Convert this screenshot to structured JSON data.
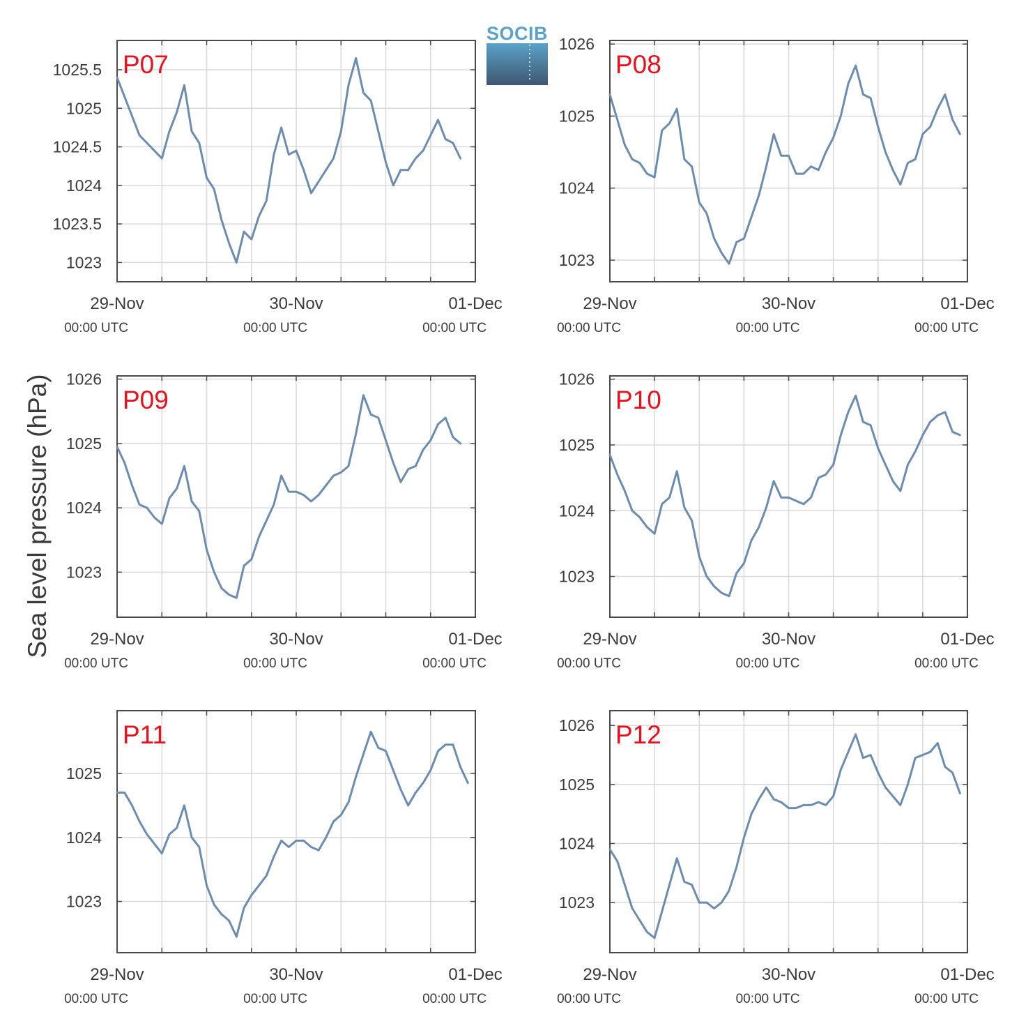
{
  "figure": {
    "ylabel": "Sea level pressure (hPa)",
    "logo_text": "SOCIB"
  },
  "colors": {
    "line": "#6b8cae",
    "label": "#e8101c",
    "grid": "#d9d9d9",
    "axis": "#4a4a4a",
    "logo_top": "#5aa2c8",
    "logo_bottom": "#3f5670"
  },
  "chart_data": [
    {
      "type": "line",
      "title": "P07",
      "xlabel": "",
      "ylabel": "Sea level pressure (hPa)",
      "xlim": [
        "29-Nov 00:00",
        "01-Dec 00:00"
      ],
      "ylim": [
        1022.75,
        1025.88
      ],
      "yticks": [
        1023,
        1023.5,
        1024,
        1024.5,
        1025,
        1025.5
      ],
      "ytick_labels": [
        "1023",
        "1023.5",
        "1024",
        "1024.5",
        "1025",
        "1025.5"
      ],
      "xticks": [
        {
          "label": "29-Nov",
          "sub": "00:00 UTC"
        },
        {
          "label": "30-Nov",
          "sub": "00:00 UTC"
        },
        {
          "label": "01-Dec",
          "sub": "00:00 UTC"
        }
      ],
      "grid": true,
      "series": [
        {
          "x": [
            0,
            1,
            2,
            3,
            4,
            5,
            6,
            7,
            8,
            9,
            10,
            11,
            12,
            13,
            14,
            15,
            16,
            17,
            18,
            19,
            20,
            21,
            22,
            23,
            24,
            25,
            26,
            27,
            28,
            29,
            30,
            31,
            32,
            33,
            34,
            35,
            36,
            37,
            38,
            39,
            40,
            41,
            42,
            43,
            44,
            45,
            46,
            47,
            48
          ],
          "y": [
            1025.4,
            1025.15,
            1024.9,
            1024.65,
            1024.55,
            1024.45,
            1024.35,
            1024.7,
            1024.95,
            1025.3,
            1024.7,
            1024.55,
            1024.1,
            1023.95,
            1023.55,
            1023.25,
            1023.0,
            1023.4,
            1023.3,
            1023.6,
            1023.8,
            1024.4,
            1024.75,
            1024.4,
            1024.45,
            1024.2,
            1023.9,
            1024.05,
            1024.2,
            1024.35,
            1024.7,
            1025.3,
            1025.65,
            1025.2,
            1025.1,
            1024.7,
            1024.3,
            1024.0,
            1024.2,
            1024.2,
            1024.35,
            1024.45,
            1024.65,
            1024.85,
            1024.6,
            1024.55,
            1024.35,
            null,
            null
          ]
        }
      ]
    },
    {
      "type": "line",
      "title": "P08",
      "xlabel": "",
      "ylabel": "Sea level pressure (hPa)",
      "xlim": [
        "29-Nov 00:00",
        "01-Dec 00:00"
      ],
      "ylim": [
        1022.7,
        1026.05
      ],
      "yticks": [
        1023,
        1024,
        1025,
        1026
      ],
      "ytick_labels": [
        "1023",
        "1024",
        "1025",
        "1026"
      ],
      "xticks": [
        {
          "label": "29-Nov",
          "sub": "00:00 UTC"
        },
        {
          "label": "30-Nov",
          "sub": "00:00 UTC"
        },
        {
          "label": "01-Dec",
          "sub": "00:00 UTC"
        }
      ],
      "grid": true,
      "series": [
        {
          "x": [
            0,
            1,
            2,
            3,
            4,
            5,
            6,
            7,
            8,
            9,
            10,
            11,
            12,
            13,
            14,
            15,
            16,
            17,
            18,
            19,
            20,
            21,
            22,
            23,
            24,
            25,
            26,
            27,
            28,
            29,
            30,
            31,
            32,
            33,
            34,
            35,
            36,
            37,
            38,
            39,
            40,
            41,
            42,
            43,
            44,
            45,
            46,
            47,
            48
          ],
          "y": [
            1025.3,
            1024.95,
            1024.6,
            1024.4,
            1024.35,
            1024.2,
            1024.15,
            1024.8,
            1024.9,
            1025.1,
            1024.4,
            1024.3,
            1023.8,
            1023.65,
            1023.3,
            1023.1,
            1022.95,
            1023.25,
            1023.3,
            1023.6,
            1023.9,
            1024.3,
            1024.75,
            1024.45,
            1024.45,
            1024.2,
            1024.2,
            1024.3,
            1024.25,
            1024.5,
            1024.7,
            1025.0,
            1025.45,
            1025.7,
            1025.3,
            1025.25,
            1024.85,
            1024.5,
            1024.25,
            1024.05,
            1024.35,
            1024.4,
            1024.75,
            1024.85,
            1025.1,
            1025.3,
            1024.95,
            1024.75,
            null
          ]
        }
      ]
    },
    {
      "type": "line",
      "title": "P09",
      "xlabel": "",
      "ylabel": "Sea level pressure (hPa)",
      "xlim": [
        "29-Nov 00:00",
        "01-Dec 00:00"
      ],
      "ylim": [
        1022.3,
        1026.05
      ],
      "yticks": [
        1023,
        1024,
        1025,
        1026
      ],
      "ytick_labels": [
        "1023",
        "1024",
        "1025",
        "1026"
      ],
      "xticks": [
        {
          "label": "29-Nov",
          "sub": "00:00 UTC"
        },
        {
          "label": "30-Nov",
          "sub": "00:00 UTC"
        },
        {
          "label": "01-Dec",
          "sub": "00:00 UTC"
        }
      ],
      "grid": true,
      "series": [
        {
          "x": [
            0,
            1,
            2,
            3,
            4,
            5,
            6,
            7,
            8,
            9,
            10,
            11,
            12,
            13,
            14,
            15,
            16,
            17,
            18,
            19,
            20,
            21,
            22,
            23,
            24,
            25,
            26,
            27,
            28,
            29,
            30,
            31,
            32,
            33,
            34,
            35,
            36,
            37,
            38,
            39,
            40,
            41,
            42,
            43,
            44,
            45,
            46,
            47,
            48
          ],
          "y": [
            1024.95,
            1024.7,
            1024.35,
            1024.05,
            1024.0,
            1023.85,
            1023.75,
            1024.15,
            1024.3,
            1024.65,
            1024.1,
            1023.95,
            1023.35,
            1023.0,
            1022.75,
            1022.65,
            1022.6,
            1023.1,
            1023.2,
            1023.55,
            1023.8,
            1024.05,
            1024.5,
            1024.25,
            1024.25,
            1024.2,
            1024.1,
            1024.2,
            1024.35,
            1024.5,
            1024.55,
            1024.65,
            1025.15,
            1025.75,
            1025.45,
            1025.4,
            1025.05,
            1024.7,
            1024.4,
            1024.6,
            1024.65,
            1024.9,
            1025.05,
            1025.3,
            1025.4,
            1025.1,
            1025.0,
            null,
            null
          ]
        }
      ]
    },
    {
      "type": "line",
      "title": "P10",
      "xlabel": "",
      "ylabel": "Sea level pressure (hPa)",
      "xlim": [
        "29-Nov 00:00",
        "01-Dec 00:00"
      ],
      "ylim": [
        1022.38,
        1026.05
      ],
      "yticks": [
        1023,
        1024,
        1025,
        1026
      ],
      "ytick_labels": [
        "1023",
        "1024",
        "1025",
        "1026"
      ],
      "xticks": [
        {
          "label": "29-Nov",
          "sub": "00:00 UTC"
        },
        {
          "label": "30-Nov",
          "sub": "00:00 UTC"
        },
        {
          "label": "01-Dec",
          "sub": "00:00 UTC"
        }
      ],
      "grid": true,
      "series": [
        {
          "x": [
            0,
            1,
            2,
            3,
            4,
            5,
            6,
            7,
            8,
            9,
            10,
            11,
            12,
            13,
            14,
            15,
            16,
            17,
            18,
            19,
            20,
            21,
            22,
            23,
            24,
            25,
            26,
            27,
            28,
            29,
            30,
            31,
            32,
            33,
            34,
            35,
            36,
            37,
            38,
            39,
            40,
            41,
            42,
            43,
            44,
            45,
            46,
            47,
            48
          ],
          "y": [
            1024.85,
            1024.55,
            1024.3,
            1024.0,
            1023.9,
            1023.75,
            1023.65,
            1024.1,
            1024.2,
            1024.6,
            1024.05,
            1023.85,
            1023.3,
            1023.0,
            1022.85,
            1022.75,
            1022.7,
            1023.05,
            1023.2,
            1023.55,
            1023.75,
            1024.05,
            1024.45,
            1024.2,
            1024.2,
            1024.15,
            1024.1,
            1024.2,
            1024.5,
            1024.55,
            1024.7,
            1025.15,
            1025.5,
            1025.75,
            1025.35,
            1025.3,
            1024.95,
            1024.7,
            1024.45,
            1024.3,
            1024.7,
            1024.9,
            1025.15,
            1025.35,
            1025.45,
            1025.5,
            1025.2,
            1025.15,
            null
          ]
        }
      ]
    },
    {
      "type": "line",
      "title": "P11",
      "xlabel": "",
      "ylabel": "Sea level pressure (hPa)",
      "xlim": [
        "29-Nov 00:00",
        "01-Dec 00:00"
      ],
      "ylim": [
        1022.2,
        1025.98
      ],
      "yticks": [
        1023,
        1024,
        1025
      ],
      "ytick_labels": [
        "1023",
        "1024",
        "1025"
      ],
      "xticks": [
        {
          "label": "29-Nov",
          "sub": "00:00 UTC"
        },
        {
          "label": "30-Nov",
          "sub": "00:00 UTC"
        },
        {
          "label": "01-Dec",
          "sub": "00:00 UTC"
        }
      ],
      "grid": true,
      "series": [
        {
          "x": [
            0,
            1,
            2,
            3,
            4,
            5,
            6,
            7,
            8,
            9,
            10,
            11,
            12,
            13,
            14,
            15,
            16,
            17,
            18,
            19,
            20,
            21,
            22,
            23,
            24,
            25,
            26,
            27,
            28,
            29,
            30,
            31,
            32,
            33,
            34,
            35,
            36,
            37,
            38,
            39,
            40,
            41,
            42,
            43,
            44,
            45,
            46,
            47,
            48
          ],
          "y": [
            1024.7,
            1024.7,
            1024.5,
            1024.25,
            1024.05,
            1023.9,
            1023.75,
            1024.05,
            1024.15,
            1024.5,
            1024.0,
            1023.85,
            1023.25,
            1022.95,
            1022.8,
            1022.7,
            1022.45,
            1022.9,
            1023.1,
            1023.25,
            1023.4,
            1023.7,
            1023.95,
            1023.85,
            1023.95,
            1023.95,
            1023.85,
            1023.8,
            1024.0,
            1024.25,
            1024.35,
            1024.55,
            1024.95,
            1025.3,
            1025.65,
            1025.4,
            1025.35,
            1025.05,
            1024.75,
            1024.5,
            1024.7,
            1024.85,
            1025.05,
            1025.35,
            1025.45,
            1025.45,
            1025.1,
            1024.85,
            null
          ]
        }
      ]
    },
    {
      "type": "line",
      "title": "P12",
      "xlabel": "",
      "ylabel": "Sea level pressure (hPa)",
      "xlim": [
        "29-Nov 00:00",
        "01-Dec 00:00"
      ],
      "ylim": [
        1022.15,
        1026.25
      ],
      "yticks": [
        1023,
        1024,
        1025,
        1026
      ],
      "ytick_labels": [
        "1023",
        "1024",
        "1025",
        "1026"
      ],
      "xticks": [
        {
          "label": "29-Nov",
          "sub": "00:00 UTC"
        },
        {
          "label": "30-Nov",
          "sub": "00:00 UTC"
        },
        {
          "label": "01-Dec",
          "sub": "00:00 UTC"
        }
      ],
      "grid": true,
      "series": [
        {
          "x": [
            0,
            1,
            2,
            3,
            4,
            5,
            6,
            7,
            8,
            9,
            10,
            11,
            12,
            13,
            14,
            15,
            16,
            17,
            18,
            19,
            20,
            21,
            22,
            23,
            24,
            25,
            26,
            27,
            28,
            29,
            30,
            31,
            32,
            33,
            34,
            35,
            36,
            37,
            38,
            39,
            40,
            41,
            42,
            43,
            44,
            45,
            46,
            47,
            48
          ],
          "y": [
            1023.9,
            1023.7,
            1023.3,
            1022.9,
            1022.7,
            1022.5,
            1022.4,
            1022.85,
            1023.3,
            1023.75,
            1023.35,
            1023.3,
            1023.0,
            1023.0,
            1022.9,
            1023.0,
            1023.2,
            1023.6,
            1024.1,
            1024.5,
            1024.75,
            1024.95,
            1024.75,
            1024.7,
            1024.6,
            1024.6,
            1024.65,
            1024.65,
            1024.7,
            1024.65,
            1024.8,
            1025.25,
            1025.55,
            1025.85,
            1025.45,
            1025.5,
            1025.2,
            1024.95,
            1024.8,
            1024.65,
            1025.0,
            1025.45,
            1025.5,
            1025.55,
            1025.7,
            1025.3,
            1025.2,
            1024.85,
            null
          ]
        }
      ]
    }
  ]
}
